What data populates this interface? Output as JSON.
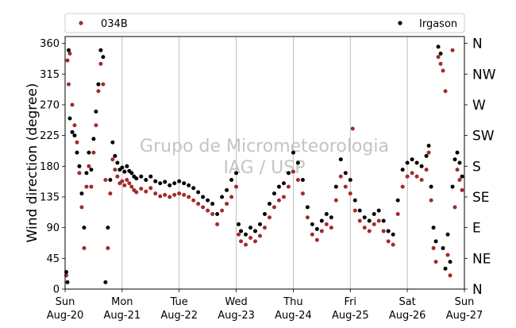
{
  "chart_data": {
    "type": "scatter",
    "ylabel": "Wind direction (degree)",
    "ylim": [
      0,
      370
    ],
    "yticks": [
      0,
      45,
      90,
      135,
      180,
      225,
      270,
      315,
      360
    ],
    "compass_labels": [
      {
        "deg": 0,
        "label": "N"
      },
      {
        "deg": 45,
        "label": "NE"
      },
      {
        "deg": 90,
        "label": "E"
      },
      {
        "deg": 135,
        "label": "SE"
      },
      {
        "deg": 180,
        "label": "S"
      },
      {
        "deg": 225,
        "label": "SW"
      },
      {
        "deg": 270,
        "label": "W"
      },
      {
        "deg": 315,
        "label": "NW"
      },
      {
        "deg": 360,
        "label": "N"
      }
    ],
    "xlim": [
      "2017-08-20T00:00",
      "2017-08-27T00:00"
    ],
    "xticks": [
      {
        "date": "2017-08-20",
        "day": "Sun",
        "label": "Aug-20"
      },
      {
        "date": "2017-08-21",
        "day": "Mon",
        "label": "Aug-21"
      },
      {
        "date": "2017-08-22",
        "day": "Tue",
        "label": "Aug-22"
      },
      {
        "date": "2017-08-23",
        "day": "Wed",
        "label": "Aug-23"
      },
      {
        "date": "2017-08-24",
        "day": "Thu",
        "label": "Aug-24"
      },
      {
        "date": "2017-08-25",
        "day": "Fri",
        "label": "Aug-25"
      },
      {
        "date": "2017-08-26",
        "day": "Sat",
        "label": "Aug-26"
      },
      {
        "date": "2017-08-27",
        "day": "Sun",
        "label": "Aug-27"
      }
    ],
    "grid": "vertical",
    "legend_position": "top",
    "watermark": [
      "Grupo de Micrometeorologia",
      "IAG / USP"
    ],
    "series": [
      {
        "name": "034B",
        "color": "#a52a2a",
        "points": [
          [
            "2017-08-20T00:30",
            20
          ],
          [
            "2017-08-20T01:00",
            335
          ],
          [
            "2017-08-20T01:30",
            300
          ],
          [
            "2017-08-20T02:00",
            345
          ],
          [
            "2017-08-20T03:00",
            270
          ],
          [
            "2017-08-20T04:00",
            240
          ],
          [
            "2017-08-20T05:00",
            215
          ],
          [
            "2017-08-20T06:00",
            170
          ],
          [
            "2017-08-20T07:00",
            120
          ],
          [
            "2017-08-20T08:00",
            60
          ],
          [
            "2017-08-20T09:00",
            150
          ],
          [
            "2017-08-20T10:00",
            180
          ],
          [
            "2017-08-20T11:00",
            150
          ],
          [
            "2017-08-20T12:00",
            200
          ],
          [
            "2017-08-20T13:00",
            240
          ],
          [
            "2017-08-20T14:00",
            290
          ],
          [
            "2017-08-20T15:00",
            330
          ],
          [
            "2017-08-20T16:00",
            300
          ],
          [
            "2017-08-20T17:00",
            160
          ],
          [
            "2017-08-20T18:00",
            60
          ],
          [
            "2017-08-20T19:00",
            140
          ],
          [
            "2017-08-20T20:00",
            190
          ],
          [
            "2017-08-20T21:00",
            175
          ],
          [
            "2017-08-20T22:00",
            165
          ],
          [
            "2017-08-20T23:00",
            155
          ],
          [
            "2017-08-21T00:00",
            158
          ],
          [
            "2017-08-21T01:00",
            152
          ],
          [
            "2017-08-21T02:00",
            160
          ],
          [
            "2017-08-21T03:00",
            155
          ],
          [
            "2017-08-21T04:00",
            150
          ],
          [
            "2017-08-21T05:00",
            145
          ],
          [
            "2017-08-21T06:00",
            142
          ],
          [
            "2017-08-21T08:00",
            147
          ],
          [
            "2017-08-21T10:00",
            143
          ],
          [
            "2017-08-21T12:00",
            148
          ],
          [
            "2017-08-21T14:00",
            140
          ],
          [
            "2017-08-21T16:00",
            136
          ],
          [
            "2017-08-21T18:00",
            138
          ],
          [
            "2017-08-21T20:00",
            135
          ],
          [
            "2017-08-21T22:00",
            138
          ],
          [
            "2017-08-22T00:00",
            140
          ],
          [
            "2017-08-22T02:00",
            138
          ],
          [
            "2017-08-22T04:00",
            135
          ],
          [
            "2017-08-22T06:00",
            130
          ],
          [
            "2017-08-22T08:00",
            125
          ],
          [
            "2017-08-22T10:00",
            120
          ],
          [
            "2017-08-22T12:00",
            115
          ],
          [
            "2017-08-22T14:00",
            110
          ],
          [
            "2017-08-22T16:00",
            95
          ],
          [
            "2017-08-22T18:00",
            115
          ],
          [
            "2017-08-22T20:00",
            125
          ],
          [
            "2017-08-22T22:00",
            135
          ],
          [
            "2017-08-23T00:00",
            150
          ],
          [
            "2017-08-23T01:00",
            80
          ],
          [
            "2017-08-23T02:00",
            70
          ],
          [
            "2017-08-23T04:00",
            65
          ],
          [
            "2017-08-23T06:00",
            75
          ],
          [
            "2017-08-23T08:00",
            70
          ],
          [
            "2017-08-23T10:00",
            78
          ],
          [
            "2017-08-23T12:00",
            90
          ],
          [
            "2017-08-23T14:00",
            105
          ],
          [
            "2017-08-23T16:00",
            120
          ],
          [
            "2017-08-23T18:00",
            130
          ],
          [
            "2017-08-23T20:00",
            135
          ],
          [
            "2017-08-23T22:00",
            150
          ],
          [
            "2017-08-24T00:00",
            172
          ],
          [
            "2017-08-24T02:00",
            160
          ],
          [
            "2017-08-24T04:00",
            140
          ],
          [
            "2017-08-24T06:00",
            105
          ],
          [
            "2017-08-24T08:00",
            80
          ],
          [
            "2017-08-24T10:00",
            72
          ],
          [
            "2017-08-24T12:00",
            85
          ],
          [
            "2017-08-24T14:00",
            95
          ],
          [
            "2017-08-24T16:00",
            90
          ],
          [
            "2017-08-24T18:00",
            130
          ],
          [
            "2017-08-24T20:00",
            165
          ],
          [
            "2017-08-24T22:00",
            150
          ],
          [
            "2017-08-25T00:00",
            140
          ],
          [
            "2017-08-25T01:00",
            235
          ],
          [
            "2017-08-25T02:00",
            115
          ],
          [
            "2017-08-25T04:00",
            100
          ],
          [
            "2017-08-25T06:00",
            90
          ],
          [
            "2017-08-25T08:00",
            85
          ],
          [
            "2017-08-25T10:00",
            95
          ],
          [
            "2017-08-25T12:00",
            100
          ],
          [
            "2017-08-25T14:00",
            85
          ],
          [
            "2017-08-25T16:00",
            70
          ],
          [
            "2017-08-25T18:00",
            65
          ],
          [
            "2017-08-25T20:00",
            110
          ],
          [
            "2017-08-25T22:00",
            150
          ],
          [
            "2017-08-26T00:00",
            165
          ],
          [
            "2017-08-26T02:00",
            170
          ],
          [
            "2017-08-26T04:00",
            165
          ],
          [
            "2017-08-26T06:00",
            160
          ],
          [
            "2017-08-26T08:00",
            175
          ],
          [
            "2017-08-26T09:00",
            200
          ],
          [
            "2017-08-26T10:00",
            130
          ],
          [
            "2017-08-26T11:00",
            60
          ],
          [
            "2017-08-26T12:00",
            40
          ],
          [
            "2017-08-26T13:00",
            340
          ],
          [
            "2017-08-26T14:00",
            330
          ],
          [
            "2017-08-26T15:00",
            320
          ],
          [
            "2017-08-26T16:00",
            290
          ],
          [
            "2017-08-26T17:00",
            50
          ],
          [
            "2017-08-26T18:00",
            20
          ],
          [
            "2017-08-26T19:00",
            350
          ],
          [
            "2017-08-26T20:00",
            120
          ],
          [
            "2017-08-26T21:00",
            175
          ],
          [
            "2017-08-26T22:00",
            160
          ],
          [
            "2017-08-26T23:00",
            145
          ]
        ]
      },
      {
        "name": "Irgason",
        "color": "#000000",
        "points": [
          [
            "2017-08-20T00:30",
            25
          ],
          [
            "2017-08-20T01:00",
            10
          ],
          [
            "2017-08-20T01:30",
            350
          ],
          [
            "2017-08-20T02:00",
            250
          ],
          [
            "2017-08-20T03:00",
            230
          ],
          [
            "2017-08-20T04:00",
            225
          ],
          [
            "2017-08-20T05:00",
            200
          ],
          [
            "2017-08-20T06:00",
            180
          ],
          [
            "2017-08-20T07:00",
            140
          ],
          [
            "2017-08-20T08:00",
            90
          ],
          [
            "2017-08-20T09:00",
            170
          ],
          [
            "2017-08-20T10:00",
            200
          ],
          [
            "2017-08-20T11:00",
            175
          ],
          [
            "2017-08-20T12:00",
            220
          ],
          [
            "2017-08-20T13:00",
            260
          ],
          [
            "2017-08-20T14:00",
            300
          ],
          [
            "2017-08-20T15:00",
            350
          ],
          [
            "2017-08-20T16:00",
            340
          ],
          [
            "2017-08-20T17:00",
            10
          ],
          [
            "2017-08-20T18:00",
            90
          ],
          [
            "2017-08-20T19:00",
            160
          ],
          [
            "2017-08-20T20:00",
            215
          ],
          [
            "2017-08-20T21:00",
            195
          ],
          [
            "2017-08-20T22:00",
            185
          ],
          [
            "2017-08-20T23:00",
            175
          ],
          [
            "2017-08-21T00:00",
            178
          ],
          [
            "2017-08-21T01:00",
            172
          ],
          [
            "2017-08-21T02:00",
            180
          ],
          [
            "2017-08-21T03:00",
            173
          ],
          [
            "2017-08-21T04:00",
            170
          ],
          [
            "2017-08-21T05:00",
            165
          ],
          [
            "2017-08-21T06:00",
            162
          ],
          [
            "2017-08-21T08:00",
            165
          ],
          [
            "2017-08-21T10:00",
            160
          ],
          [
            "2017-08-21T12:00",
            165
          ],
          [
            "2017-08-21T14:00",
            158
          ],
          [
            "2017-08-21T16:00",
            155
          ],
          [
            "2017-08-21T18:00",
            157
          ],
          [
            "2017-08-21T20:00",
            152
          ],
          [
            "2017-08-21T22:00",
            155
          ],
          [
            "2017-08-22T00:00",
            158
          ],
          [
            "2017-08-22T02:00",
            155
          ],
          [
            "2017-08-22T04:00",
            152
          ],
          [
            "2017-08-22T06:00",
            148
          ],
          [
            "2017-08-22T08:00",
            142
          ],
          [
            "2017-08-22T10:00",
            135
          ],
          [
            "2017-08-22T12:00",
            130
          ],
          [
            "2017-08-22T14:00",
            125
          ],
          [
            "2017-08-22T16:00",
            110
          ],
          [
            "2017-08-22T18:00",
            135
          ],
          [
            "2017-08-22T20:00",
            145
          ],
          [
            "2017-08-22T22:00",
            160
          ],
          [
            "2017-08-23T00:00",
            170
          ],
          [
            "2017-08-23T01:00",
            95
          ],
          [
            "2017-08-23T02:00",
            85
          ],
          [
            "2017-08-23T04:00",
            80
          ],
          [
            "2017-08-23T06:00",
            90
          ],
          [
            "2017-08-23T08:00",
            85
          ],
          [
            "2017-08-23T10:00",
            95
          ],
          [
            "2017-08-23T12:00",
            110
          ],
          [
            "2017-08-23T14:00",
            125
          ],
          [
            "2017-08-23T16:00",
            140
          ],
          [
            "2017-08-23T18:00",
            150
          ],
          [
            "2017-08-23T20:00",
            155
          ],
          [
            "2017-08-23T22:00",
            170
          ],
          [
            "2017-08-24T00:00",
            200
          ],
          [
            "2017-08-24T02:00",
            185
          ],
          [
            "2017-08-24T04:00",
            160
          ],
          [
            "2017-08-24T06:00",
            120
          ],
          [
            "2017-08-24T08:00",
            95
          ],
          [
            "2017-08-24T10:00",
            88
          ],
          [
            "2017-08-24T12:00",
            100
          ],
          [
            "2017-08-24T14:00",
            110
          ],
          [
            "2017-08-24T16:00",
            105
          ],
          [
            "2017-08-24T18:00",
            150
          ],
          [
            "2017-08-24T20:00",
            190
          ],
          [
            "2017-08-24T22:00",
            170
          ],
          [
            "2017-08-25T00:00",
            160
          ],
          [
            "2017-08-25T02:00",
            130
          ],
          [
            "2017-08-25T04:00",
            115
          ],
          [
            "2017-08-25T06:00",
            105
          ],
          [
            "2017-08-25T08:00",
            100
          ],
          [
            "2017-08-25T10:00",
            110
          ],
          [
            "2017-08-25T12:00",
            115
          ],
          [
            "2017-08-25T14:00",
            100
          ],
          [
            "2017-08-25T16:00",
            85
          ],
          [
            "2017-08-25T18:00",
            80
          ],
          [
            "2017-08-25T20:00",
            130
          ],
          [
            "2017-08-25T22:00",
            175
          ],
          [
            "2017-08-26T00:00",
            185
          ],
          [
            "2017-08-26T02:00",
            190
          ],
          [
            "2017-08-26T04:00",
            185
          ],
          [
            "2017-08-26T06:00",
            180
          ],
          [
            "2017-08-26T08:00",
            195
          ],
          [
            "2017-08-26T09:00",
            210
          ],
          [
            "2017-08-26T10:00",
            150
          ],
          [
            "2017-08-26T11:00",
            90
          ],
          [
            "2017-08-26T12:00",
            70
          ],
          [
            "2017-08-26T13:00",
            355
          ],
          [
            "2017-08-26T14:00",
            345
          ],
          [
            "2017-08-26T15:00",
            60
          ],
          [
            "2017-08-26T16:00",
            30
          ],
          [
            "2017-08-26T17:00",
            80
          ],
          [
            "2017-08-26T18:00",
            40
          ],
          [
            "2017-08-26T19:00",
            150
          ],
          [
            "2017-08-26T20:00",
            190
          ],
          [
            "2017-08-26T21:00",
            200
          ],
          [
            "2017-08-26T22:00",
            185
          ],
          [
            "2017-08-26T23:00",
            165
          ]
        ]
      }
    ]
  }
}
